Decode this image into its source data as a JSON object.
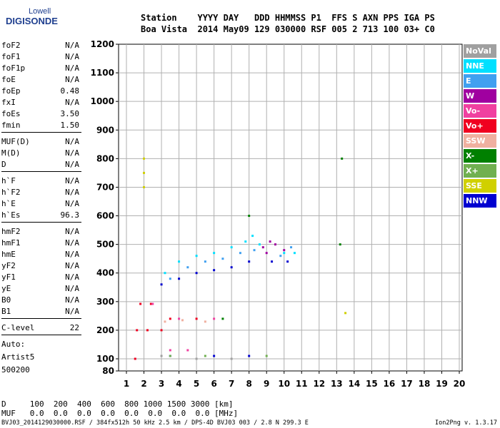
{
  "logo": {
    "line1": "Lowell",
    "line2": "DIGISONDE"
  },
  "header": {
    "line1": "Station    YYYY DAY   DDD HHMMSS P1  FFS S AXN PPS IGA PS",
    "line2": "Boa Vista  2014 May09 129 030000 RSF 005 2 713 100 03+ C0"
  },
  "params": [
    {
      "label": "foF2",
      "value": "N/A"
    },
    {
      "label": "foF1",
      "value": "N/A"
    },
    {
      "label": "foF1p",
      "value": "N/A"
    },
    {
      "label": "foE",
      "value": "N/A"
    },
    {
      "label": "foEp",
      "value": "0.48"
    },
    {
      "label": "fxI",
      "value": "N/A"
    },
    {
      "label": "foEs",
      "value": "3.50"
    },
    {
      "label": "fmin",
      "value": "1.50"
    },
    {
      "sep": true
    },
    {
      "label": "MUF(D)",
      "value": "N/A"
    },
    {
      "label": "M(D)",
      "value": "N/A"
    },
    {
      "label": "D",
      "value": "N/A"
    },
    {
      "sep": true
    },
    {
      "label": "h`F",
      "value": "N/A"
    },
    {
      "label": "h`F2",
      "value": "N/A"
    },
    {
      "label": "h`E",
      "value": "N/A"
    },
    {
      "label": "h`Es",
      "value": "96.3"
    },
    {
      "sep": true
    },
    {
      "label": "hmF2",
      "value": "N/A"
    },
    {
      "label": "hmF1",
      "value": "N/A"
    },
    {
      "label": "hmE",
      "value": "N/A"
    },
    {
      "label": "yF2",
      "value": "N/A"
    },
    {
      "label": "yF1",
      "value": "N/A"
    },
    {
      "label": "yE",
      "value": "N/A"
    },
    {
      "label": "B0",
      "value": "N/A"
    },
    {
      "label": "B1",
      "value": "N/A"
    },
    {
      "sep": true
    },
    {
      "label": "C-level",
      "value": "22"
    },
    {
      "sep": true
    },
    {
      "text": "Auto:"
    },
    {
      "text": "Artist5"
    },
    {
      "text": "500200"
    }
  ],
  "legend": [
    {
      "label": "NoVal",
      "color": "#a0a0a0"
    },
    {
      "label": "NNE",
      "color": "#00e0ff"
    },
    {
      "label": "E",
      "color": "#40a0f0"
    },
    {
      "label": "W",
      "color": "#a000a0"
    },
    {
      "label": "Vo-",
      "color": "#f040a0"
    },
    {
      "label": "Vo+",
      "color": "#f00020"
    },
    {
      "label": "SSW",
      "color": "#f0b0a0"
    },
    {
      "label": "X-",
      "color": "#008000"
    },
    {
      "label": "X+",
      "color": "#70b050"
    },
    {
      "label": "SSE",
      "color": "#d0d000"
    },
    {
      "label": "NNW",
      "color": "#0000d0"
    }
  ],
  "mufTable": {
    "dLine": "D     100  200  400  600  800 1000 1500 3000 [km]",
    "mufLine": "MUF   0.0  0.0  0.0  0.0  0.0  0.0  0.0  0.0 [MHz]"
  },
  "footer": {
    "left": "BVJ03_2014129030000.RSF / 384fx512h 50 kHz 2.5 km / DPS-4D BVJ03 003 / 2.8 N 299.3 E",
    "right": "Ion2Png v. 1.3.17"
  },
  "chart_data": {
    "type": "scatter",
    "title": "",
    "xlabel": "",
    "ylabel": "",
    "x_unit": "MHz",
    "y_unit": "km",
    "xlim": [
      1,
      20
    ],
    "ylim": [
      80,
      1200
    ],
    "xticks": [
      1,
      2,
      3,
      4,
      5,
      6,
      7,
      8,
      9,
      10,
      11,
      12,
      13,
      14,
      15,
      16,
      17,
      18,
      19,
      20
    ],
    "yticks": [
      80,
      100,
      200,
      300,
      400,
      500,
      600,
      700,
      800,
      900,
      1000,
      1100,
      1200
    ],
    "ytick_labels": [
      "80",
      "100",
      "200",
      "300",
      "400",
      "500",
      "600",
      "700",
      "800",
      "900",
      "1000",
      "1100",
      "1200"
    ],
    "grid": true,
    "legend": "right",
    "series": [
      {
        "name": "NNE",
        "color": "#00e0ff",
        "points": [
          [
            3.2,
            400
          ],
          [
            4.0,
            440
          ],
          [
            5.0,
            460
          ],
          [
            6.0,
            470
          ],
          [
            7.0,
            490
          ],
          [
            7.8,
            510
          ],
          [
            8.2,
            530
          ],
          [
            8.6,
            500
          ],
          [
            10.0,
            470
          ],
          [
            10.6,
            470
          ]
        ]
      },
      {
        "name": "E",
        "color": "#40a0f0",
        "points": [
          [
            3.5,
            380
          ],
          [
            4.5,
            420
          ],
          [
            5.5,
            440
          ],
          [
            6.5,
            450
          ],
          [
            7.5,
            470
          ],
          [
            8.3,
            480
          ],
          [
            9.8,
            460
          ],
          [
            10.4,
            490
          ]
        ]
      },
      {
        "name": "W",
        "color": "#a000a0",
        "points": [
          [
            8.8,
            490
          ],
          [
            9.0,
            470
          ],
          [
            9.2,
            510
          ],
          [
            9.5,
            500
          ],
          [
            10.0,
            480
          ]
        ]
      },
      {
        "name": "NNW",
        "color": "#0000d0",
        "points": [
          [
            3.0,
            360
          ],
          [
            4.0,
            380
          ],
          [
            5.0,
            400
          ],
          [
            6.0,
            410
          ],
          [
            7.0,
            420
          ],
          [
            8.0,
            440
          ],
          [
            9.3,
            440
          ],
          [
            10.2,
            440
          ],
          [
            3.5,
            110
          ],
          [
            6.0,
            110
          ],
          [
            8.0,
            110
          ]
        ]
      },
      {
        "name": "Vo+",
        "color": "#f00020",
        "points": [
          [
            1.6,
            200
          ],
          [
            2.2,
            200
          ],
          [
            3.0,
            200
          ],
          [
            1.8,
            292
          ],
          [
            2.4,
            292
          ],
          [
            3.5,
            240
          ],
          [
            5.0,
            240
          ],
          [
            1.5,
            100
          ]
        ]
      },
      {
        "name": "Vo-",
        "color": "#f040a0",
        "points": [
          [
            2.5,
            292
          ],
          [
            4.0,
            240
          ],
          [
            6.0,
            240
          ],
          [
            3.5,
            130
          ],
          [
            4.5,
            130
          ]
        ]
      },
      {
        "name": "SSW",
        "color": "#f0b0a0",
        "points": [
          [
            3.2,
            230
          ],
          [
            4.2,
            235
          ],
          [
            5.5,
            230
          ]
        ]
      },
      {
        "name": "X-",
        "color": "#008000",
        "points": [
          [
            6.5,
            240
          ],
          [
            8.0,
            600
          ],
          [
            13.2,
            500
          ],
          [
            13.3,
            800
          ]
        ]
      },
      {
        "name": "X+",
        "color": "#70b050",
        "points": [
          [
            3.5,
            110
          ],
          [
            5.5,
            110
          ],
          [
            9.0,
            110
          ]
        ]
      },
      {
        "name": "SSE",
        "color": "#d0d000",
        "points": [
          [
            2.0,
            700
          ],
          [
            2.0,
            750
          ],
          [
            2.0,
            800
          ],
          [
            13.5,
            260
          ]
        ]
      },
      {
        "name": "NoVal",
        "color": "#a0a0a0",
        "points": [
          [
            3.0,
            110
          ],
          [
            5.0,
            100
          ],
          [
            7.0,
            100
          ]
        ]
      }
    ]
  }
}
